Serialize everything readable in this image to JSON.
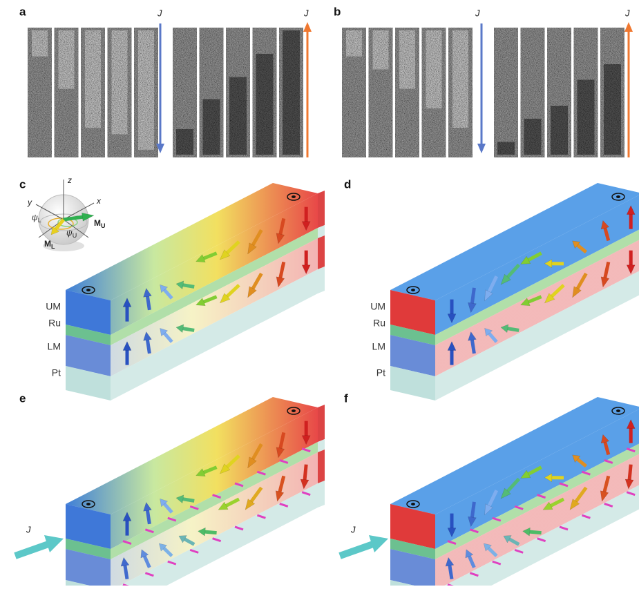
{
  "panels": [
    {
      "label": "a",
      "currents": [
        "J",
        "J"
      ]
    },
    {
      "label": "b",
      "currents": [
        "J",
        "J"
      ]
    },
    {
      "label": "c",
      "layers": [
        "UM",
        "Ru",
        "LM",
        "Pt"
      ],
      "inset": {
        "axes": [
          "z",
          "x",
          "y"
        ],
        "angles": [
          {
            "symbol": "ψ",
            "sub": "L"
          },
          {
            "symbol": "ψ",
            "sub": "U"
          }
        ],
        "moments": [
          {
            "symbol": "M",
            "sub": "U"
          },
          {
            "symbol": "M",
            "sub": "L"
          }
        ]
      }
    },
    {
      "label": "d",
      "layers": [
        "UM",
        "Ru",
        "LM",
        "Pt"
      ]
    },
    {
      "label": "e",
      "current": "J"
    },
    {
      "label": "f",
      "current": "J"
    }
  ]
}
